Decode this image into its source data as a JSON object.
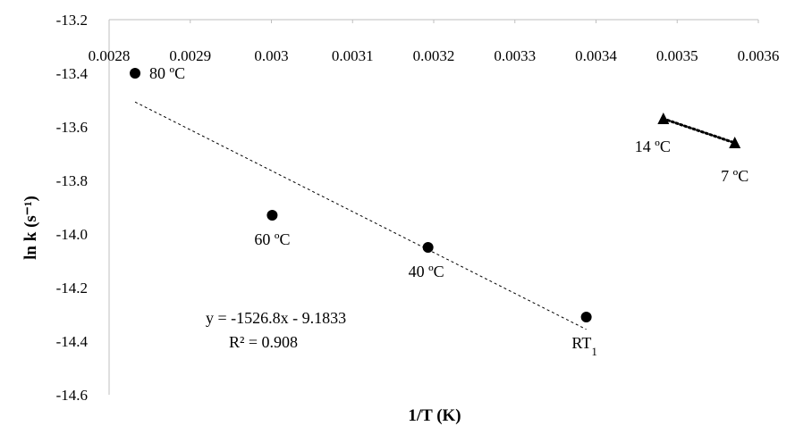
{
  "chart_data": {
    "type": "scatter",
    "title": "",
    "xlabel": "1/T (K)",
    "ylabel": "ln k (s⁻¹)",
    "xlim": [
      0.0028,
      0.0036
    ],
    "ylim": [
      -14.6,
      -13.2
    ],
    "x_ticks": [
      "0.0028",
      "0.0029",
      "0.003",
      "0.0031",
      "0.0032",
      "0.0033",
      "0.0034",
      "0.0035",
      "0.0036"
    ],
    "y_ticks": [
      "-13.2",
      "-13.4",
      "-13.6",
      "-13.8",
      "-14.0",
      "-14.2",
      "-14.4",
      "-14.6"
    ],
    "x_axis_position": "top",
    "grid": false,
    "series": [
      {
        "marker": "circle",
        "color": "#000000",
        "points": [
          {
            "x": 0.002832,
            "y": -13.4,
            "label": "80 ºC"
          },
          {
            "x": 0.003001,
            "y": -13.93,
            "label": "60 ºC"
          },
          {
            "x": 0.003193,
            "y": -14.05,
            "label": "40 ºC"
          },
          {
            "x": 0.003388,
            "y": -14.31,
            "label": "RT",
            "label_sub": "1"
          }
        ],
        "trendline": {
          "style": "dashed",
          "slope": -1526.8,
          "intercept": -9.1833,
          "x_range": [
            0.002832,
            0.003388
          ],
          "equation": "y = -1526.8x - 9.1833",
          "r2": "R² = 0.908"
        }
      },
      {
        "marker": "triangle",
        "color": "#000000",
        "points": [
          {
            "x": 0.003483,
            "y": -13.57,
            "label": "14 ºC"
          },
          {
            "x": 0.003571,
            "y": -13.66,
            "label": "7 ºC"
          }
        ],
        "connector": "dotted"
      }
    ]
  }
}
